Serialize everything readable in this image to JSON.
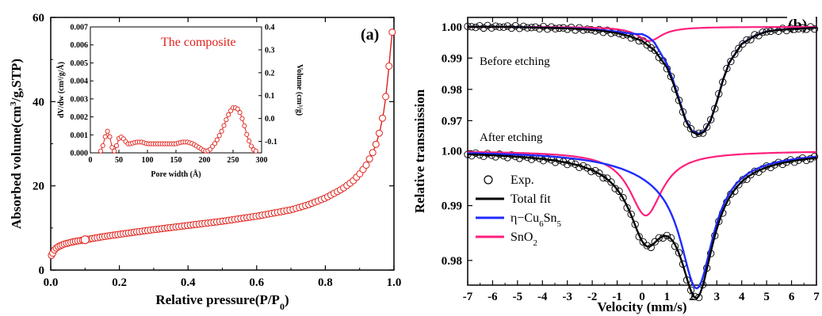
{
  "chart_data": [
    {
      "panel_label": "(a)",
      "type": "line",
      "xlabel": "Relative pressure(P/P",
      "xlabel_sub": "0",
      "xlabel_tail": ")",
      "ylabel": "Absorbed volume(cm",
      "ylabel_sup": "3",
      "ylabel_tail": "/g,STP)",
      "xlim": [
        0,
        1.0
      ],
      "ylim": [
        0,
        60
      ],
      "xticks": [
        "0.0",
        "0.2",
        "0.4",
        "0.6",
        "0.8",
        "1.0"
      ],
      "yticks": [
        "0",
        "20",
        "40",
        "60"
      ],
      "color": "#e0211b",
      "series": [
        {
          "x": [
            0.003,
            0.01,
            0.02,
            0.04,
            0.07,
            0.1,
            0.15,
            0.2,
            0.3,
            0.4,
            0.5,
            0.6,
            0.7,
            0.75,
            0.8,
            0.85,
            0.88,
            0.9,
            0.92,
            0.94,
            0.95,
            0.96,
            0.97,
            0.975,
            0.98,
            0.985,
            0.99,
            0.995
          ],
          "y": [
            3.5,
            4.7,
            5.5,
            6.2,
            6.8,
            7.2,
            7.9,
            8.5,
            9.6,
            10.6,
            11.6,
            12.8,
            14.3,
            15.5,
            17.1,
            19.3,
            21.1,
            22.8,
            25.0,
            28.2,
            30.4,
            33.4,
            37.5,
            40.5,
            44.0,
            48.0,
            52.5,
            56.5
          ]
        }
      ],
      "inset": {
        "title": "The composite",
        "xlabel": "Pore width (Å)",
        "ylabel_left": "dV/dw (cm³/g/Å)",
        "ylabel_right": "Volume (cm³/g)",
        "xlim": [
          0,
          300
        ],
        "ylim_left": [
          0,
          0.007
        ],
        "ylim_right": [
          -0.15,
          0.4
        ],
        "xticks": [
          "0",
          "50",
          "100",
          "150",
          "200",
          "250",
          "300"
        ],
        "yticks_left": [
          "0.000",
          "0.001",
          "0.002",
          "0.003",
          "0.004",
          "0.005",
          "0.006",
          "0.007"
        ],
        "yticks_right": [
          "-0.1",
          "0.0",
          "0.1",
          "0.2",
          "0.3",
          "0.4"
        ],
        "x": [
          18,
          22,
          26,
          30,
          34,
          38,
          42,
          46,
          50,
          55,
          60,
          65,
          70,
          80,
          90,
          100,
          110,
          120,
          130,
          140,
          150,
          160,
          170,
          180,
          190,
          195,
          200,
          205,
          210,
          215,
          220,
          225,
          230,
          235,
          240,
          245,
          250,
          255,
          260,
          265,
          270,
          275,
          280,
          285,
          290
        ],
        "y": [
          0.0001,
          0.0004,
          0.0009,
          0.0012,
          0.0009,
          0.0003,
          0.0001,
          0.0004,
          0.0008,
          0.0009,
          0.0007,
          0.0005,
          0.0005,
          0.0006,
          0.0006,
          0.0005,
          0.0005,
          0.0005,
          0.0005,
          0.0005,
          0.0005,
          0.0006,
          0.0006,
          0.0005,
          0.0003,
          0.0002,
          0.0001,
          0.0001,
          0.0002,
          0.0004,
          0.0006,
          0.0009,
          0.0012,
          0.0016,
          0.002,
          0.0023,
          0.0025,
          0.0025,
          0.0024,
          0.002,
          0.0015,
          0.0009,
          0.0005,
          0.0002,
          0.0001
        ]
      }
    },
    {
      "panel_label": "(b)",
      "type": "line",
      "xlabel": "Velocity (mm/s)",
      "ylabel": "Relative transmission",
      "xlim": [
        -7,
        7
      ],
      "xticks": [
        "-7",
        "-6",
        "-5",
        "-4",
        "-3",
        "-2",
        "-1",
        "0",
        "1",
        "2",
        "3",
        "4",
        "5",
        "6",
        "7"
      ],
      "top": {
        "note": "Before etching",
        "ylim": [
          0.963,
          1.003
        ],
        "yticks": [
          "0.97",
          "0.98",
          "0.99",
          "1.00"
        ],
        "exp_x": [
          -7,
          -6.5,
          -6,
          -5.5,
          -5,
          -4.5,
          -4,
          -3.5,
          -3,
          -2.5,
          -2,
          -1.5,
          -1,
          -0.5,
          0,
          0.5,
          1,
          1.25,
          1.5,
          1.75,
          2,
          2.25,
          2.5,
          2.75,
          3,
          3.25,
          3.5,
          4,
          4.5,
          5,
          5.5,
          6,
          6.5,
          7
        ],
        "exp_y": [
          1.0,
          1.0,
          1.0,
          1.0,
          0.9999,
          0.9998,
          0.9997,
          0.9996,
          0.9995,
          0.9993,
          0.999,
          0.9986,
          0.998,
          0.997,
          0.9955,
          0.9925,
          0.987,
          0.982,
          0.976,
          0.97,
          0.9665,
          0.9655,
          0.9665,
          0.97,
          0.976,
          0.983,
          0.9885,
          0.9945,
          0.997,
          0.9985,
          0.999,
          0.9993,
          0.9995,
          0.9997
        ],
        "fits": [
          {
            "name": "Total fit",
            "color": "#000000"
          },
          {
            "name": "η−Cu6Sn5",
            "color": "#1f2bff"
          },
          {
            "name": "SnO2",
            "color": "#ff1f7c"
          }
        ]
      },
      "bottom": {
        "note": "After etching",
        "ylim": [
          0.9755,
          1.0015
        ],
        "yticks": [
          "0.98",
          "0.99",
          "1.00"
        ]
      },
      "legend": [
        {
          "label": "Exp.",
          "marker": "circle",
          "color": "#000000"
        },
        {
          "label": "Total fit",
          "color": "#000000"
        },
        {
          "label": "η−Cu",
          "sub1": "6",
          "mid": "Sn",
          "sub2": "5",
          "color": "#1f2bff"
        },
        {
          "label": "SnO",
          "sub1": "2",
          "color": "#ff1f7c"
        }
      ]
    }
  ]
}
